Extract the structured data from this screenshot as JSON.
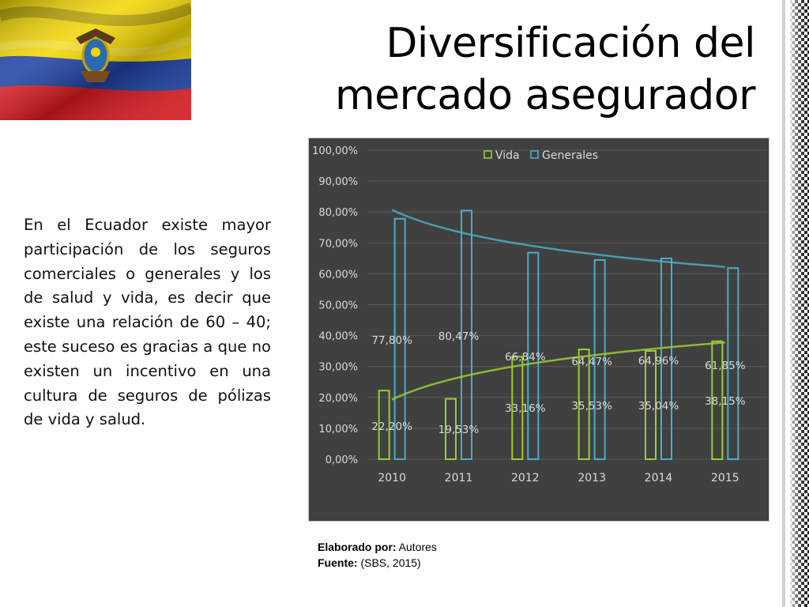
{
  "slide": {
    "title_line1": "Diversificación del",
    "title_line2": "mercado asegurador",
    "body_text": "En el Ecuador existe mayor participación de los seguros comerciales o generales y los de salud y vida, es decir que existe una relación de 60 – 40; este suceso es gracias a que no existen un incentivo en una cultura de seguros de pólizas de vida y salud.",
    "source_label_1": "Elaborado por:",
    "source_value_1": " Autores",
    "source_label_2": "Fuente:",
    "source_value_2": " (SBS, 2015)"
  },
  "colors": {
    "chart_bg": "#404040",
    "vida": "#9acd32",
    "generales": "#4bacc6",
    "flag_yellow": "#f2d600",
    "flag_blue": "#1b3fa0",
    "flag_red": "#d71920"
  },
  "chart_data": {
    "type": "bar",
    "categories": [
      "2010",
      "2011",
      "2012",
      "2013",
      "2014",
      "2015"
    ],
    "series": [
      {
        "name": "Vida",
        "values": [
          22.2,
          19.53,
          33.16,
          35.53,
          35.04,
          38.15
        ],
        "labels": [
          "22,20%",
          "19,53%",
          "33,16%",
          "35,53%",
          "35,04%",
          "38,15%"
        ]
      },
      {
        "name": "Generales",
        "values": [
          77.8,
          80.47,
          66.84,
          64.47,
          64.96,
          61.85
        ],
        "labels": [
          "77,80%",
          "80,47%",
          "66,84%",
          "64,47%",
          "64,96%",
          "61,85%"
        ]
      }
    ],
    "y_ticks": [
      "0,00%",
      "10,00%",
      "20,00%",
      "30,00%",
      "40,00%",
      "50,00%",
      "60,00%",
      "70,00%",
      "80,00%",
      "90,00%",
      "100,00%"
    ],
    "ylim": [
      0,
      100
    ],
    "trendlines": true,
    "legend_position": "top",
    "grid": "horizontal"
  }
}
